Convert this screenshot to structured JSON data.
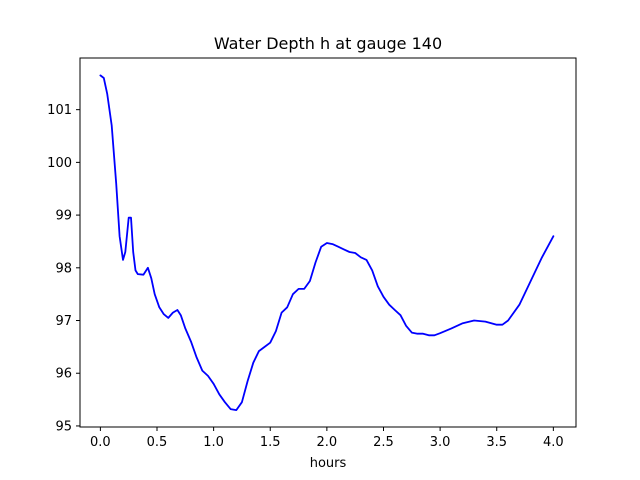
{
  "chart_data": {
    "type": "line",
    "title": "Water Depth h at gauge 140",
    "xlabel": "hours",
    "ylabel": "",
    "xlim": [
      -0.18,
      4.2
    ],
    "ylim": [
      94.98,
      101.98
    ],
    "xticks": [
      "0.0",
      "0.5",
      "1.0",
      "1.5",
      "2.0",
      "2.5",
      "3.0",
      "3.5",
      "4.0"
    ],
    "yticks": [
      "95",
      "96",
      "97",
      "98",
      "99",
      "100",
      "101"
    ],
    "grid": false,
    "legend": "none",
    "series": [
      {
        "color": "#0000ff",
        "x": [
          0.0,
          0.03,
          0.06,
          0.1,
          0.14,
          0.17,
          0.2,
          0.22,
          0.25,
          0.27,
          0.29,
          0.31,
          0.33,
          0.38,
          0.42,
          0.45,
          0.48,
          0.52,
          0.56,
          0.6,
          0.64,
          0.68,
          0.71,
          0.75,
          0.8,
          0.85,
          0.9,
          0.95,
          1.0,
          1.05,
          1.1,
          1.15,
          1.2,
          1.25,
          1.3,
          1.35,
          1.4,
          1.45,
          1.5,
          1.55,
          1.6,
          1.65,
          1.7,
          1.75,
          1.8,
          1.85,
          1.9,
          1.95,
          2.0,
          2.05,
          2.1,
          2.15,
          2.2,
          2.25,
          2.3,
          2.35,
          2.4,
          2.45,
          2.5,
          2.55,
          2.6,
          2.65,
          2.7,
          2.75,
          2.8,
          2.85,
          2.9,
          2.95,
          3.0,
          3.1,
          3.2,
          3.3,
          3.4,
          3.5,
          3.55,
          3.6,
          3.7,
          3.8,
          3.9,
          4.0
        ],
        "values": [
          101.65,
          101.6,
          101.3,
          100.7,
          99.6,
          98.6,
          98.15,
          98.3,
          98.95,
          98.95,
          98.3,
          97.95,
          97.88,
          97.87,
          98.0,
          97.8,
          97.5,
          97.25,
          97.12,
          97.05,
          97.15,
          97.2,
          97.1,
          96.85,
          96.6,
          96.3,
          96.05,
          95.95,
          95.8,
          95.6,
          95.45,
          95.32,
          95.3,
          95.45,
          95.85,
          96.2,
          96.42,
          96.5,
          96.58,
          96.8,
          97.15,
          97.25,
          97.5,
          97.6,
          97.6,
          97.75,
          98.1,
          98.4,
          98.47,
          98.45,
          98.4,
          98.35,
          98.3,
          98.28,
          98.2,
          98.15,
          97.95,
          97.65,
          97.45,
          97.3,
          97.2,
          97.1,
          96.9,
          96.77,
          96.75,
          96.75,
          96.72,
          96.72,
          96.76,
          96.85,
          96.95,
          97.0,
          96.98,
          96.92,
          96.92,
          97.0,
          97.3,
          97.75,
          98.2,
          98.6
        ]
      }
    ]
  }
}
